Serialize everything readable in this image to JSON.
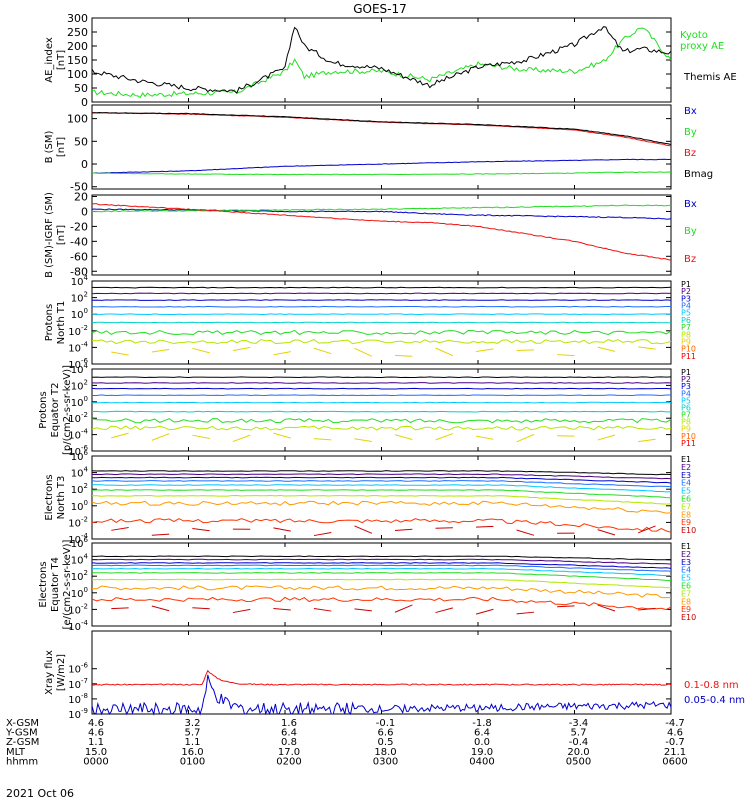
{
  "title": "GOES-17",
  "date_label": "2021 Oct 06",
  "colors": {
    "black": "#000000",
    "red": "#ee1111",
    "green": "#22dd22",
    "blue": "#0000cc",
    "P1": "#000000",
    "P2": "#4b0082",
    "P3": "#0000cd",
    "P4": "#1e6eff",
    "P5": "#00c8ff",
    "P6": "#00d2c8",
    "P7": "#22dd22",
    "P8": "#b4e600",
    "P9": "#e6d200",
    "P10": "#ff6600",
    "P11": "#ee0000",
    "E1": "#000000",
    "E2": "#4b0082",
    "E3": "#0000cd",
    "E4": "#1e6eff",
    "E5": "#00c8ff",
    "E6": "#22dd22",
    "E7": "#b4e600",
    "E8": "#ff9900",
    "E9": "#ff3300",
    "E10": "#cc0000"
  },
  "chart_data": [
    {
      "type": "line",
      "id": "ae",
      "ylabel": "AE_index\n[nT]",
      "ylim": [
        0,
        300
      ],
      "scale": "linear",
      "yticks": [
        0,
        50,
        100,
        150,
        200,
        250,
        300
      ],
      "ytick_labels": [
        "0",
        "50",
        "100",
        "150",
        "200",
        "250",
        "300"
      ],
      "x_hours": [
        0,
        0.5,
        1.0,
        1.5,
        2.0,
        2.1,
        2.2,
        2.5,
        3.0,
        3.5,
        4.0,
        4.5,
        5.0,
        5.3,
        5.5,
        5.7,
        6.0
      ],
      "series": [
        {
          "name": "Kyoto\nproxy AE",
          "color": "green",
          "values": [
            35,
            25,
            30,
            35,
            110,
            150,
            90,
            110,
            110,
            80,
            135,
            115,
            110,
            145,
            220,
            270,
            150
          ]
        },
        {
          "name": "Themis AE",
          "color": "black",
          "values": [
            110,
            75,
            50,
            40,
            120,
            275,
            200,
            140,
            120,
            60,
            125,
            150,
            205,
            270,
            180,
            190,
            175
          ]
        }
      ]
    },
    {
      "type": "line",
      "id": "bsm",
      "ylabel": "B (SM)\n[nT]",
      "ylim": [
        -55,
        130
      ],
      "scale": "linear",
      "yticks": [
        -50,
        0,
        50,
        100
      ],
      "ytick_labels": [
        "-50",
        "0",
        "50",
        "100"
      ],
      "x_hours": [
        0,
        1,
        2,
        3,
        4,
        5,
        5.5,
        6
      ],
      "series": [
        {
          "name": "Bx",
          "color": "blue",
          "values": [
            -20,
            -15,
            -5,
            0,
            5,
            8,
            10,
            10
          ]
        },
        {
          "name": "By",
          "color": "green",
          "values": [
            -20,
            -22,
            -23,
            -23,
            -22,
            -20,
            -18,
            -18
          ]
        },
        {
          "name": "Bz",
          "color": "red",
          "values": [
            113,
            110,
            103,
            92,
            86,
            75,
            60,
            40
          ]
        },
        {
          "name": "Bmag",
          "color": "black",
          "values": [
            113,
            111,
            104,
            93,
            87,
            77,
            63,
            43
          ]
        }
      ]
    },
    {
      "type": "line",
      "id": "bigrf",
      "ylabel": "B (SM)-IGRF (SM)\n[nT]",
      "ylim": [
        -85,
        22
      ],
      "scale": "linear",
      "yticks": [
        -80,
        -60,
        -40,
        -20,
        0,
        20
      ],
      "ytick_labels": [
        "-80",
        "-60",
        "-40",
        "-20",
        "0",
        "20"
      ],
      "x_hours": [
        0,
        1,
        2,
        3,
        3.5,
        4,
        4.5,
        5,
        5.5,
        6
      ],
      "series": [
        {
          "name": "Bx",
          "color": "blue",
          "values": [
            3,
            2,
            0,
            0,
            -3,
            -5,
            -6,
            -7,
            -8,
            -10
          ]
        },
        {
          "name": "By",
          "color": "green",
          "values": [
            0,
            1,
            2,
            3,
            4,
            5,
            6,
            7,
            8,
            8
          ]
        },
        {
          "name": "Bz",
          "color": "red",
          "values": [
            10,
            3,
            -5,
            -13,
            -15,
            -20,
            -30,
            -40,
            -55,
            -65
          ]
        }
      ]
    },
    {
      "type": "line",
      "id": "pn",
      "log": true,
      "ylabel": "Protons\nNorth T1",
      "ylim_exp": [
        -6,
        4
      ],
      "ytick_exps": [
        -6,
        -4,
        -2,
        0,
        2,
        4
      ],
      "ytick_labels": [
        "10-6",
        "10-4",
        "10-2",
        "100",
        "102",
        "104"
      ],
      "legend": [
        "P1",
        "P2",
        "P3",
        "P4",
        "P5",
        "P6",
        "P7",
        "P8",
        "P9",
        "P10",
        "P11"
      ],
      "levels": [
        3.2,
        2.5,
        1.7,
        0.9,
        0.0,
        -1.0,
        -2.2,
        -3.3
      ],
      "noisy_from": 7
    },
    {
      "type": "line",
      "id": "pe",
      "log": true,
      "ylabel": "Protons\nEquator T2\n[p/(cm2-s-sr-keV)]",
      "ylim_exp": [
        -6,
        4
      ],
      "ytick_exps": [
        -6,
        -4,
        -2,
        0,
        2,
        4
      ],
      "ytick_labels": [
        "10-6",
        "10-4",
        "10-2",
        "100",
        "102",
        "104"
      ],
      "legend": [
        "P1",
        "P2",
        "P3",
        "P4",
        "P5",
        "P6",
        "P7",
        "P8",
        "P9",
        "P10",
        "P11"
      ],
      "levels": [
        3.0,
        2.3,
        1.6,
        0.8,
        -0.1,
        -1.2,
        -2.3,
        -3.2
      ],
      "noisy_from": 7
    },
    {
      "type": "line",
      "id": "en",
      "log": true,
      "ylabel": "Electrons\nNorth T3",
      "ylim_exp": [
        -4,
        6
      ],
      "ytick_exps": [
        -4,
        -2,
        0,
        2,
        4,
        6
      ],
      "ytick_labels": [
        "10-4",
        "10-2",
        "100",
        "102",
        "104",
        "106"
      ],
      "legend": [
        "E1",
        "E2",
        "E3",
        "E4",
        "E5",
        "E6",
        "E7",
        "E8",
        "E9",
        "E10"
      ],
      "levels": [
        4.2,
        3.8,
        3.4,
        3.0,
        2.5,
        1.9,
        1.2,
        0.3,
        -1.8
      ],
      "noisy_from": 8
    },
    {
      "type": "line",
      "id": "ee",
      "log": true,
      "ylabel": "Electrons\nEquator T4\n[e/(cm2-s-sr-keV)]",
      "ylim_exp": [
        -4,
        6
      ],
      "ytick_exps": [
        -4,
        -2,
        0,
        2,
        4,
        6
      ],
      "ytick_labels": [
        "10-4",
        "10-2",
        "100",
        "102",
        "104",
        "106"
      ],
      "legend": [
        "E1",
        "E2",
        "E3",
        "E4",
        "E5",
        "E6",
        "E7",
        "E8",
        "E9",
        "E10"
      ],
      "levels": [
        4.4,
        4.0,
        3.6,
        3.3,
        2.9,
        2.4,
        1.6,
        0.6,
        -0.8
      ],
      "noisy_from": 8
    },
    {
      "type": "line",
      "id": "xray",
      "log": true,
      "ylabel": "Xray flux\n[W/m2]",
      "ylim_exp": [
        -9,
        -3.5
      ],
      "ytick_exps": [
        -9,
        -8,
        -7,
        -6
      ],
      "ytick_labels": [
        "10-9",
        "10-8",
        "10-7",
        "10-6"
      ],
      "series": [
        {
          "name": "0.1-0.8 nm",
          "color": "red",
          "base_exp": -7.05,
          "peak_hour": 1.2,
          "peak_exp": -6.1
        },
        {
          "name": "0.05-0.4 nm",
          "color": "blue",
          "base_exp": -8.7,
          "peak_hour": 1.2,
          "peak_exp": -6.8
        }
      ]
    }
  ],
  "x_axis": {
    "ticks_hours": [
      0,
      1,
      2,
      3,
      4,
      5,
      6
    ],
    "rows": [
      {
        "label": "X-GSM",
        "values": [
          "4.6",
          "3.2",
          "1.6",
          "-0.1",
          "-1.8",
          "-3.4",
          "-4.7"
        ]
      },
      {
        "label": "Y-GSM",
        "values": [
          "4.6",
          "5.7",
          "6.4",
          "6.6",
          "6.4",
          "5.7",
          "4.6"
        ]
      },
      {
        "label": "Z-GSM",
        "values": [
          "1.1",
          "1.1",
          "0.8",
          "0.5",
          "0.0",
          "-0.4",
          "-0.7"
        ]
      },
      {
        "label": "MLT",
        "values": [
          "15.0",
          "16.0",
          "17.0",
          "18.0",
          "19.0",
          "20.0",
          "21.1"
        ]
      },
      {
        "label": "hhmm",
        "values": [
          "0000",
          "0100",
          "0200",
          "0300",
          "0400",
          "0500",
          "0600"
        ]
      }
    ]
  }
}
